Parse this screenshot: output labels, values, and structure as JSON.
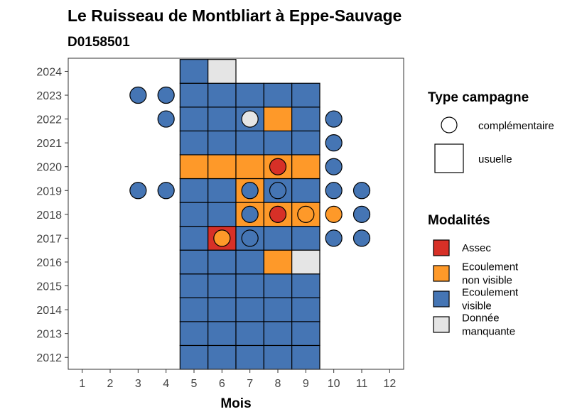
{
  "chart_data": {
    "type": "heatmap",
    "title": "Le Ruisseau de Montbliart à Eppe-Sauvage",
    "subtitle": "D0158501",
    "xlabel": "Mois",
    "ylabel": "",
    "x_ticks": [
      "1",
      "2",
      "3",
      "4",
      "5",
      "6",
      "7",
      "8",
      "9",
      "10",
      "11",
      "12"
    ],
    "y_ticks": [
      "2012",
      "2013",
      "2014",
      "2015",
      "2016",
      "2017",
      "2018",
      "2019",
      "2020",
      "2021",
      "2022",
      "2023",
      "2024"
    ],
    "xlim": [
      0.5,
      12.5
    ],
    "ylim": [
      2011.5,
      2024.55
    ],
    "colors": {
      "Assec": "#d73027",
      "Ecoulement non visible": "#fe9929",
      "Ecoulement visible": "#4575b4",
      "Donnée manquante": "#e5e5e5"
    },
    "legend_type": {
      "title": "Type campagne",
      "items": [
        {
          "label": "complémentaire",
          "shape": "circle"
        },
        {
          "label": "usuelle",
          "shape": "square"
        }
      ]
    },
    "legend_modalites": {
      "title": "Modalités",
      "items": [
        {
          "key": "Assec",
          "lines": [
            "Assec"
          ]
        },
        {
          "key": "Ecoulement non visible",
          "lines": [
            "Ecoulement",
            "non visible"
          ]
        },
        {
          "key": "Ecoulement visible",
          "lines": [
            "Ecoulement",
            "visible"
          ]
        },
        {
          "key": "Donnée manquante",
          "lines": [
            "Donnée",
            "manquante"
          ]
        }
      ]
    },
    "usuelle": [
      {
        "year": 2012,
        "month": 5,
        "modalite": "Ecoulement visible"
      },
      {
        "year": 2012,
        "month": 6,
        "modalite": "Ecoulement visible"
      },
      {
        "year": 2012,
        "month": 7,
        "modalite": "Ecoulement visible"
      },
      {
        "year": 2012,
        "month": 8,
        "modalite": "Ecoulement visible"
      },
      {
        "year": 2012,
        "month": 9,
        "modalite": "Ecoulement visible"
      },
      {
        "year": 2013,
        "month": 5,
        "modalite": "Ecoulement visible"
      },
      {
        "year": 2013,
        "month": 6,
        "modalite": "Ecoulement visible"
      },
      {
        "year": 2013,
        "month": 7,
        "modalite": "Ecoulement visible"
      },
      {
        "year": 2013,
        "month": 8,
        "modalite": "Ecoulement visible"
      },
      {
        "year": 2013,
        "month": 9,
        "modalite": "Ecoulement visible"
      },
      {
        "year": 2014,
        "month": 5,
        "modalite": "Ecoulement visible"
      },
      {
        "year": 2014,
        "month": 6,
        "modalite": "Ecoulement visible"
      },
      {
        "year": 2014,
        "month": 7,
        "modalite": "Ecoulement visible"
      },
      {
        "year": 2014,
        "month": 8,
        "modalite": "Ecoulement visible"
      },
      {
        "year": 2014,
        "month": 9,
        "modalite": "Ecoulement visible"
      },
      {
        "year": 2015,
        "month": 5,
        "modalite": "Ecoulement visible"
      },
      {
        "year": 2015,
        "month": 6,
        "modalite": "Ecoulement visible"
      },
      {
        "year": 2015,
        "month": 7,
        "modalite": "Ecoulement visible"
      },
      {
        "year": 2015,
        "month": 8,
        "modalite": "Ecoulement visible"
      },
      {
        "year": 2015,
        "month": 9,
        "modalite": "Ecoulement visible"
      },
      {
        "year": 2016,
        "month": 5,
        "modalite": "Ecoulement visible"
      },
      {
        "year": 2016,
        "month": 6,
        "modalite": "Ecoulement visible"
      },
      {
        "year": 2016,
        "month": 7,
        "modalite": "Ecoulement visible"
      },
      {
        "year": 2016,
        "month": 8,
        "modalite": "Ecoulement non visible"
      },
      {
        "year": 2016,
        "month": 9,
        "modalite": "Donnée manquante"
      },
      {
        "year": 2017,
        "month": 5,
        "modalite": "Ecoulement visible"
      },
      {
        "year": 2017,
        "month": 6,
        "modalite": "Assec"
      },
      {
        "year": 2017,
        "month": 7,
        "modalite": "Ecoulement visible"
      },
      {
        "year": 2017,
        "month": 8,
        "modalite": "Ecoulement visible"
      },
      {
        "year": 2017,
        "month": 9,
        "modalite": "Ecoulement visible"
      },
      {
        "year": 2018,
        "month": 5,
        "modalite": "Ecoulement visible"
      },
      {
        "year": 2018,
        "month": 6,
        "modalite": "Ecoulement visible"
      },
      {
        "year": 2018,
        "month": 7,
        "modalite": "Ecoulement non visible"
      },
      {
        "year": 2018,
        "month": 8,
        "modalite": "Ecoulement non visible"
      },
      {
        "year": 2018,
        "month": 9,
        "modalite": "Ecoulement non visible"
      },
      {
        "year": 2019,
        "month": 5,
        "modalite": "Ecoulement visible"
      },
      {
        "year": 2019,
        "month": 6,
        "modalite": "Ecoulement visible"
      },
      {
        "year": 2019,
        "month": 7,
        "modalite": "Ecoulement non visible"
      },
      {
        "year": 2019,
        "month": 8,
        "modalite": "Ecoulement visible"
      },
      {
        "year": 2019,
        "month": 9,
        "modalite": "Ecoulement visible"
      },
      {
        "year": 2020,
        "month": 5,
        "modalite": "Ecoulement non visible"
      },
      {
        "year": 2020,
        "month": 6,
        "modalite": "Ecoulement non visible"
      },
      {
        "year": 2020,
        "month": 7,
        "modalite": "Ecoulement non visible"
      },
      {
        "year": 2020,
        "month": 8,
        "modalite": "Ecoulement non visible"
      },
      {
        "year": 2020,
        "month": 9,
        "modalite": "Ecoulement non visible"
      },
      {
        "year": 2021,
        "month": 5,
        "modalite": "Ecoulement visible"
      },
      {
        "year": 2021,
        "month": 6,
        "modalite": "Ecoulement visible"
      },
      {
        "year": 2021,
        "month": 7,
        "modalite": "Ecoulement visible"
      },
      {
        "year": 2021,
        "month": 8,
        "modalite": "Ecoulement visible"
      },
      {
        "year": 2021,
        "month": 9,
        "modalite": "Ecoulement visible"
      },
      {
        "year": 2022,
        "month": 5,
        "modalite": "Ecoulement visible"
      },
      {
        "year": 2022,
        "month": 6,
        "modalite": "Ecoulement visible"
      },
      {
        "year": 2022,
        "month": 7,
        "modalite": "Ecoulement visible"
      },
      {
        "year": 2022,
        "month": 8,
        "modalite": "Ecoulement non visible"
      },
      {
        "year": 2022,
        "month": 9,
        "modalite": "Ecoulement visible"
      },
      {
        "year": 2023,
        "month": 5,
        "modalite": "Ecoulement visible"
      },
      {
        "year": 2023,
        "month": 6,
        "modalite": "Ecoulement visible"
      },
      {
        "year": 2023,
        "month": 7,
        "modalite": "Ecoulement visible"
      },
      {
        "year": 2023,
        "month": 8,
        "modalite": "Ecoulement visible"
      },
      {
        "year": 2023,
        "month": 9,
        "modalite": "Ecoulement visible"
      },
      {
        "year": 2024,
        "month": 5,
        "modalite": "Ecoulement visible"
      },
      {
        "year": 2024,
        "month": 6,
        "modalite": "Donnée manquante"
      }
    ],
    "complementaire": [
      {
        "year": 2023,
        "month": 3,
        "modalite": "Ecoulement visible"
      },
      {
        "year": 2023,
        "month": 4,
        "modalite": "Ecoulement visible"
      },
      {
        "year": 2022,
        "month": 4,
        "modalite": "Ecoulement visible"
      },
      {
        "year": 2022,
        "month": 7,
        "modalite": "Donnée manquante"
      },
      {
        "year": 2022,
        "month": 10,
        "modalite": "Ecoulement visible"
      },
      {
        "year": 2021,
        "month": 10,
        "modalite": "Ecoulement visible"
      },
      {
        "year": 2020,
        "month": 8,
        "modalite": "Assec"
      },
      {
        "year": 2020,
        "month": 10,
        "modalite": "Ecoulement visible"
      },
      {
        "year": 2019,
        "month": 3,
        "modalite": "Ecoulement visible"
      },
      {
        "year": 2019,
        "month": 4,
        "modalite": "Ecoulement visible"
      },
      {
        "year": 2019,
        "month": 7,
        "modalite": "Ecoulement visible"
      },
      {
        "year": 2019,
        "month": 8,
        "modalite": "Ecoulement visible"
      },
      {
        "year": 2019,
        "month": 10,
        "modalite": "Ecoulement visible"
      },
      {
        "year": 2019,
        "month": 11,
        "modalite": "Ecoulement visible"
      },
      {
        "year": 2018,
        "month": 7,
        "modalite": "Ecoulement visible"
      },
      {
        "year": 2018,
        "month": 8,
        "modalite": "Assec"
      },
      {
        "year": 2018,
        "month": 9,
        "modalite": "Ecoulement non visible"
      },
      {
        "year": 2018,
        "month": 10,
        "modalite": "Ecoulement non visible"
      },
      {
        "year": 2018,
        "month": 11,
        "modalite": "Ecoulement visible"
      },
      {
        "year": 2017,
        "month": 6,
        "modalite": "Ecoulement non visible"
      },
      {
        "year": 2017,
        "month": 7,
        "modalite": "Ecoulement visible"
      },
      {
        "year": 2017,
        "month": 10,
        "modalite": "Ecoulement visible"
      },
      {
        "year": 2017,
        "month": 11,
        "modalite": "Ecoulement visible"
      }
    ]
  }
}
